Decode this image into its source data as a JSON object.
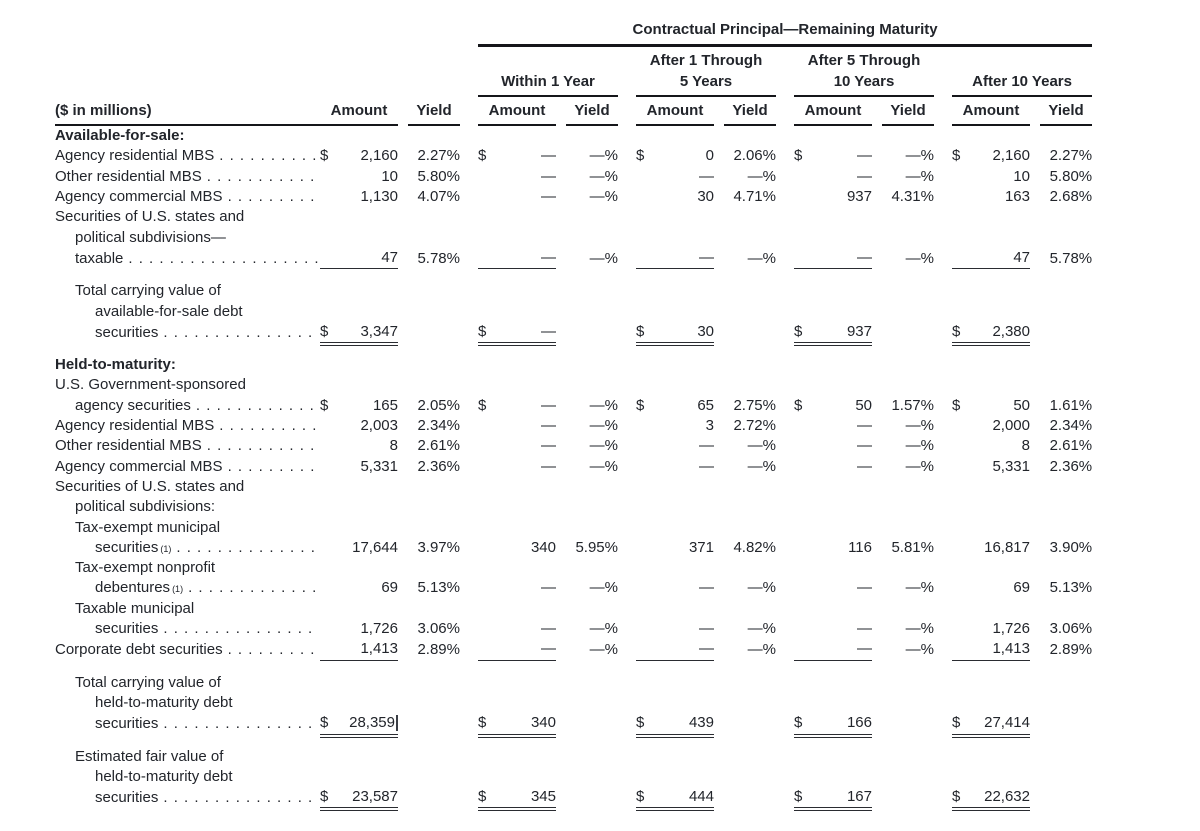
{
  "table": {
    "title": "Contractual Principal—Remaining Maturity",
    "units_label": "($ in millions)",
    "amount_label": "Amount",
    "yield_label": "Yield",
    "groups": [
      {
        "l1": "",
        "l2": "Within 1 Year"
      },
      {
        "l1": "After 1 Through",
        "l2": "5 Years"
      },
      {
        "l1": "After 5 Through",
        "l2": "10 Years"
      },
      {
        "l1": "",
        "l2": "After 10 Years"
      }
    ],
    "rows": [
      {
        "label": "Available-for-sale:",
        "bold": true
      },
      {
        "label": "Agency residential MBS",
        "dots": true,
        "cells": [
          {
            "d": "$",
            "a": "2,160",
            "y": "2.27%"
          },
          {
            "d": "$",
            "a": "—",
            "y": "—%"
          },
          {
            "d": "$",
            "a": "0",
            "y": "2.06%"
          },
          {
            "d": "$",
            "a": "—",
            "y": "—%"
          },
          {
            "d": "$",
            "a": "2,160",
            "y": "2.27%"
          }
        ]
      },
      {
        "label": "Other residential MBS",
        "dots": true,
        "cells": [
          {
            "a": "10",
            "y": "5.80%"
          },
          {
            "a": "—",
            "y": "—%"
          },
          {
            "a": "—",
            "y": "—%"
          },
          {
            "a": "—",
            "y": "—%"
          },
          {
            "a": "10",
            "y": "5.80%"
          }
        ]
      },
      {
        "label": "Agency commercial MBS",
        "dots": true,
        "cells": [
          {
            "a": "1,130",
            "y": "4.07%"
          },
          {
            "a": "—",
            "y": "—%"
          },
          {
            "a": "30",
            "y": "4.71%"
          },
          {
            "a": "937",
            "y": "4.31%"
          },
          {
            "a": "163",
            "y": "2.68%"
          }
        ]
      },
      {
        "label": "Securities of U.S. states and"
      },
      {
        "label": "political subdivisions—",
        "indent": 1
      },
      {
        "label": "taxable",
        "indent": 1,
        "dots": true,
        "ul": "single",
        "cells": [
          {
            "a": "47",
            "y": "5.78%"
          },
          {
            "a": "—",
            "y": "—%"
          },
          {
            "a": "—",
            "y": "—%"
          },
          {
            "a": "—",
            "y": "—%"
          },
          {
            "a": "47",
            "y": "5.78%"
          }
        ]
      },
      {
        "label": "Total carrying value of",
        "indent": 1,
        "gap": true
      },
      {
        "label": "available-for-sale debt",
        "indent": 2
      },
      {
        "label": "securities",
        "indent": 2,
        "dots": true,
        "ul": "double",
        "cells": [
          {
            "d": "$",
            "a": "3,347"
          },
          {
            "d": "$",
            "a": "—"
          },
          {
            "d": "$",
            "a": "30"
          },
          {
            "d": "$",
            "a": "937"
          },
          {
            "d": "$",
            "a": "2,380"
          }
        ]
      },
      {
        "label": "Held-to-maturity:",
        "bold": true,
        "gap": true
      },
      {
        "label": "U.S. Government-sponsored"
      },
      {
        "label": "agency securities",
        "indent": 1,
        "dots": true,
        "cells": [
          {
            "d": "$",
            "a": "165",
            "y": "2.05%"
          },
          {
            "d": "$",
            "a": "—",
            "y": "—%"
          },
          {
            "d": "$",
            "a": "65",
            "y": "2.75%"
          },
          {
            "d": "$",
            "a": "50",
            "y": "1.57%"
          },
          {
            "d": "$",
            "a": "50",
            "y": "1.61%"
          }
        ]
      },
      {
        "label": "Agency residential MBS",
        "dots": true,
        "cells": [
          {
            "a": "2,003",
            "y": "2.34%"
          },
          {
            "a": "—",
            "y": "—%"
          },
          {
            "a": "3",
            "y": "2.72%"
          },
          {
            "a": "—",
            "y": "—%"
          },
          {
            "a": "2,000",
            "y": "2.34%"
          }
        ]
      },
      {
        "label": "Other residential MBS",
        "dots": true,
        "cells": [
          {
            "a": "8",
            "y": "2.61%"
          },
          {
            "a": "—",
            "y": "—%"
          },
          {
            "a": "—",
            "y": "—%"
          },
          {
            "a": "—",
            "y": "—%"
          },
          {
            "a": "8",
            "y": "2.61%"
          }
        ]
      },
      {
        "label": "Agency commercial MBS",
        "dots": true,
        "cells": [
          {
            "a": "5,331",
            "y": "2.36%"
          },
          {
            "a": "—",
            "y": "—%"
          },
          {
            "a": "—",
            "y": "—%"
          },
          {
            "a": "—",
            "y": "—%"
          },
          {
            "a": "5,331",
            "y": "2.36%"
          }
        ]
      },
      {
        "label": "Securities of U.S. states and"
      },
      {
        "label": "political subdivisions:",
        "indent": 1
      },
      {
        "label": "Tax-exempt municipal",
        "indent": 1
      },
      {
        "label": "securities",
        "sup": "(1)",
        "indent": 2,
        "dots": true,
        "cells": [
          {
            "a": "17,644",
            "y": "3.97%"
          },
          {
            "a": "340",
            "y": "5.95%"
          },
          {
            "a": "371",
            "y": "4.82%"
          },
          {
            "a": "116",
            "y": "5.81%"
          },
          {
            "a": "16,817",
            "y": "3.90%"
          }
        ]
      },
      {
        "label": "Tax-exempt nonprofit",
        "indent": 1
      },
      {
        "label": "debentures",
        "sup": "(1)",
        "indent": 2,
        "dots": true,
        "cells": [
          {
            "a": "69",
            "y": "5.13%"
          },
          {
            "a": "—",
            "y": "—%"
          },
          {
            "a": "—",
            "y": "—%"
          },
          {
            "a": "—",
            "y": "—%"
          },
          {
            "a": "69",
            "y": "5.13%"
          }
        ]
      },
      {
        "label": "Taxable municipal",
        "indent": 1
      },
      {
        "label": "securities",
        "indent": 2,
        "dots": true,
        "cells": [
          {
            "a": "1,726",
            "y": "3.06%"
          },
          {
            "a": "—",
            "y": "—%"
          },
          {
            "a": "—",
            "y": "—%"
          },
          {
            "a": "—",
            "y": "—%"
          },
          {
            "a": "1,726",
            "y": "3.06%"
          }
        ]
      },
      {
        "label": "Corporate debt securities",
        "dots": true,
        "ul": "single",
        "cells": [
          {
            "a": "1,413",
            "y": "2.89%"
          },
          {
            "a": "—",
            "y": "—%"
          },
          {
            "a": "—",
            "y": "—%"
          },
          {
            "a": "—",
            "y": "—%"
          },
          {
            "a": "1,413",
            "y": "2.89%"
          }
        ]
      },
      {
        "label": "Total carrying value of",
        "indent": 1,
        "gap": true
      },
      {
        "label": "held-to-maturity debt",
        "indent": 2
      },
      {
        "label": "securities",
        "indent": 2,
        "dots": true,
        "ul": "double",
        "cells": [
          {
            "d": "$",
            "a": "28,359",
            "caret": true
          },
          {
            "d": "$",
            "a": "340"
          },
          {
            "d": "$",
            "a": "439"
          },
          {
            "d": "$",
            "a": "166"
          },
          {
            "d": "$",
            "a": "27,414"
          }
        ]
      },
      {
        "label": "Estimated fair value of",
        "indent": 1,
        "gap": true
      },
      {
        "label": "held-to-maturity debt",
        "indent": 2
      },
      {
        "label": "securities",
        "indent": 2,
        "dots": true,
        "ul": "double",
        "cells": [
          {
            "d": "$",
            "a": "23,587"
          },
          {
            "d": "$",
            "a": "345"
          },
          {
            "d": "$",
            "a": "444"
          },
          {
            "d": "$",
            "a": "167"
          },
          {
            "d": "$",
            "a": "22,632"
          }
        ]
      }
    ]
  }
}
